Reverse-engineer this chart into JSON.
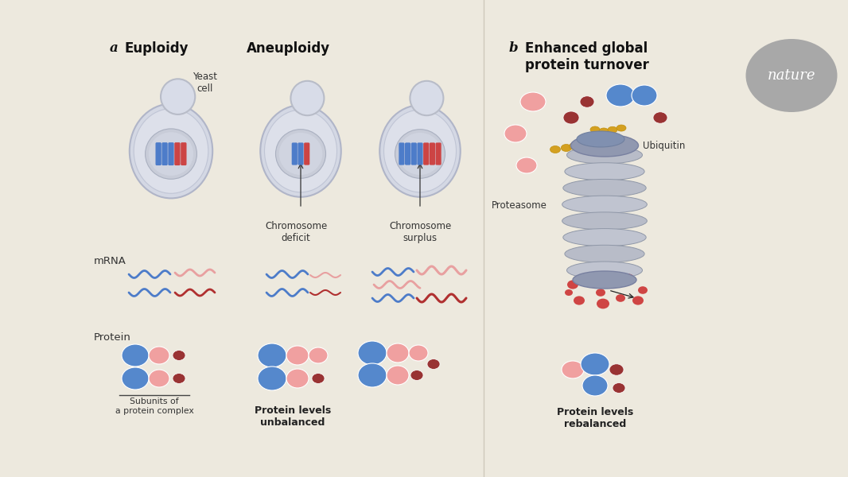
{
  "bg_color": "#ede9de",
  "chromosome_blue": "#4d7cc9",
  "chromosome_red": "#cc4444",
  "mrna_blue": "#4d7cc9",
  "mrna_pink": "#e8a0a0",
  "mrna_red": "#b03030",
  "protein_blue": "#5588cc",
  "protein_pink": "#f0a0a0",
  "protein_dark_red": "#993333",
  "ubiquitin_color": "#d4a020",
  "nature_circle_color": "#a8a8a8",
  "label_a": "a",
  "label_b": "b",
  "title_euploidy": "Euploidy",
  "title_aneuploidy": "Aneuploidy",
  "title_b": "Enhanced global\nprotein turnover",
  "label_yeast": "Yeast\ncell",
  "label_chrom_deficit": "Chromosome\ndeficit",
  "label_chrom_surplus": "Chromosome\nsurplus",
  "label_mrna": "mRNA",
  "label_protein": "Protein",
  "label_subunits": "Subunits of\na protein complex",
  "label_unbalanced": "Protein levels\nunbalanced",
  "label_rebalanced": "Protein levels\nrebalanced",
  "label_ubiquitin": "Ubiquitin",
  "label_proteasome": "Proteasome",
  "nature_text": "nature"
}
